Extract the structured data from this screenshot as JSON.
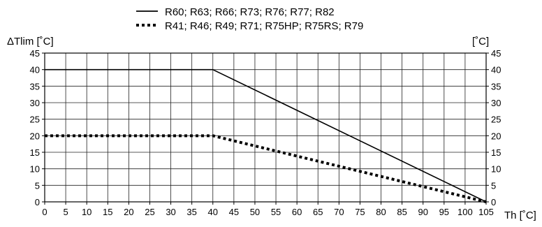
{
  "chart_data": {
    "type": "line",
    "title": "",
    "ylabel_left": "ΔTlim [˚C]",
    "ylabel_right": "[˚C]",
    "xlabel": "Th [˚C]",
    "xlim": [
      0,
      105
    ],
    "ylim": [
      0,
      45
    ],
    "x_ticks": [
      0,
      5,
      10,
      15,
      20,
      25,
      30,
      35,
      40,
      45,
      50,
      55,
      60,
      65,
      70,
      75,
      80,
      85,
      90,
      95,
      100,
      105
    ],
    "y_ticks": [
      0,
      5,
      10,
      15,
      20,
      25,
      30,
      35,
      40,
      45
    ],
    "grid": true,
    "legend_position": "top",
    "series": [
      {
        "name": "R60; R63; R66; R73; R76; R77; R82",
        "style": "solid",
        "x": [
          0,
          40,
          105
        ],
        "y": [
          40,
          40,
          0
        ]
      },
      {
        "name": "R41; R46; R49; R71; R75HP; R75RS; R79",
        "style": "dotted",
        "x": [
          0,
          40,
          105
        ],
        "y": [
          20,
          20,
          0
        ]
      }
    ]
  }
}
